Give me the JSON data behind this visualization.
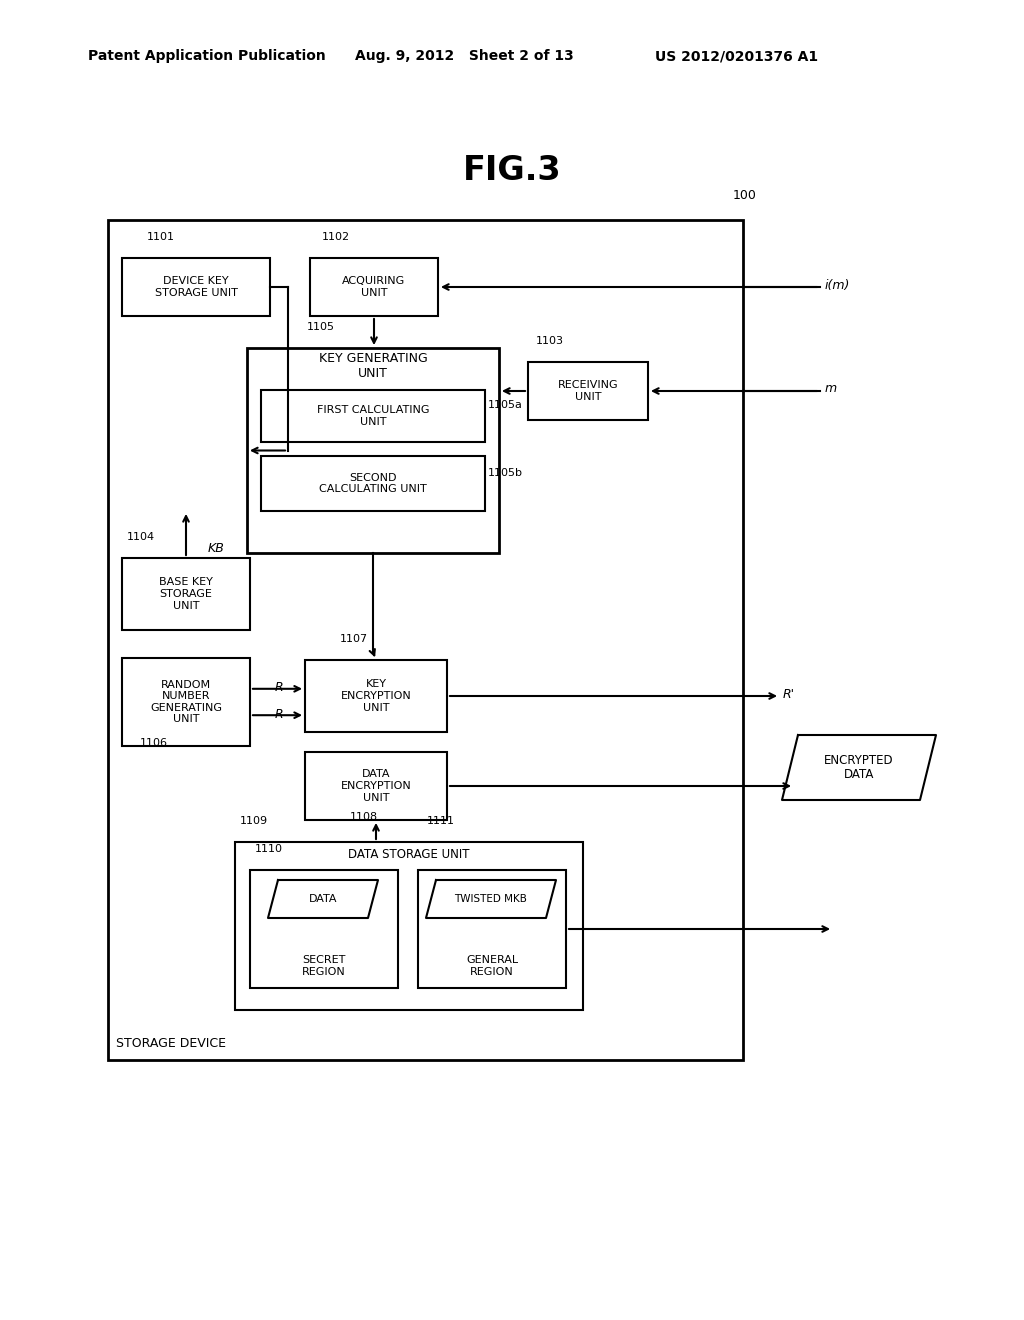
{
  "title": "FIG.3",
  "header_left": "Patent Application Publication",
  "header_mid": "Aug. 9, 2012   Sheet 2 of 13",
  "header_right": "US 2012/0201376 A1",
  "bg_color": "#ffffff",
  "label_100": "100",
  "label_storage": "STORAGE DEVICE",
  "boxes": {
    "device_key": {
      "label": "DEVICE KEY\nSTORAGE UNIT",
      "ref": "1101"
    },
    "acquiring": {
      "label": "ACQUIRING\nUNIT",
      "ref": "1102"
    },
    "receiving": {
      "label": "RECEIVING\nUNIT",
      "ref": "1103"
    },
    "base_key": {
      "label": "BASE KEY\nSTORAGE\nUNIT",
      "ref": "1104"
    },
    "key_generating": {
      "label": "KEY GENERATING\nUNIT",
      "ref": "1105"
    },
    "first_calc": {
      "label": "FIRST CALCULATING\nUNIT",
      "ref": "1105a"
    },
    "second_calc": {
      "label": "SECOND\nCALCULATING UNIT",
      "ref": "1105b"
    },
    "random_num": {
      "label": "RANDOM\nNUMBER\nGENERATING\nUNIT",
      "ref": "1106"
    },
    "key_enc": {
      "label": "KEY\nENCRYPTION\nUNIT",
      "ref": "1107"
    },
    "data_enc": {
      "label": "DATA\nENCRYPTION\nUNIT",
      "ref": "1108"
    },
    "data_storage": {
      "label": "DATA STORAGE UNIT",
      "ref": "1109"
    },
    "data_region": {
      "label": "DATA",
      "sub": "SECRET\nREGION",
      "ref": "1110"
    },
    "twisted_mkb": {
      "label": "TWISTED MKB",
      "sub": "GENERAL\nREGION",
      "ref": "1111"
    }
  }
}
